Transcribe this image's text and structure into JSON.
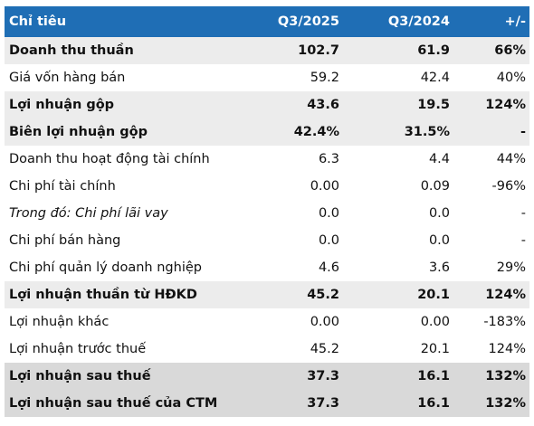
{
  "colors": {
    "header_bg": "#1f6eb5",
    "header_text": "#ffffff",
    "highlight_bg": "#ececec",
    "highlight_strong_bg": "#d9d9d9",
    "row_bg": "#ffffff"
  },
  "columns": [
    "Chỉ tiêu",
    "Q3/2025",
    "Q3/2024",
    "+/-"
  ],
  "rows": [
    {
      "label": "Doanh thu thuần",
      "q3_2025": "102.7",
      "q3_2024": "61.9",
      "change": "66%",
      "style": "highlight-bold"
    },
    {
      "label": "Giá vốn hàng bán",
      "q3_2025": "59.2",
      "q3_2024": "42.4",
      "change": "40%",
      "style": "normal"
    },
    {
      "label": "Lợi nhuận gộp",
      "q3_2025": "43.6",
      "q3_2024": "19.5",
      "change": "124%",
      "style": "highlight-bold"
    },
    {
      "label": "Biên lợi nhuận gộp",
      "q3_2025": "42.4%",
      "q3_2024": "31.5%",
      "change": "-",
      "style": "highlight-bold"
    },
    {
      "label": "Doanh thu hoạt động tài chính",
      "q3_2025": "6.3",
      "q3_2024": "4.4",
      "change": "44%",
      "style": "normal"
    },
    {
      "label": "Chi phí tài chính",
      "q3_2025": "0.00",
      "q3_2024": "0.09",
      "change": "-96%",
      "style": "normal"
    },
    {
      "label": "Trong đó: Chi phí lãi vay",
      "q3_2025": "0.0",
      "q3_2024": "0.0",
      "change": "-",
      "style": "italic"
    },
    {
      "label": "Chi phí bán hàng",
      "q3_2025": "0.0",
      "q3_2024": "0.0",
      "change": "-",
      "style": "normal"
    },
    {
      "label": "Chi phí quản lý doanh nghiệp",
      "q3_2025": "4.6",
      "q3_2024": "3.6",
      "change": "29%",
      "style": "normal"
    },
    {
      "label": "Lợi nhuận thuần từ HĐKD",
      "q3_2025": "45.2",
      "q3_2024": "20.1",
      "change": "124%",
      "style": "highlight-bold"
    },
    {
      "label": "Lợi nhuận khác",
      "q3_2025": "0.00",
      "q3_2024": "0.00",
      "change": "-183%",
      "style": "normal"
    },
    {
      "label": "Lợi nhuận trước thuế",
      "q3_2025": "45.2",
      "q3_2024": "20.1",
      "change": "124%",
      "style": "normal"
    },
    {
      "label": "Lợi nhuận sau thuế",
      "q3_2025": "37.3",
      "q3_2024": "16.1",
      "change": "132%",
      "style": "strong-bold"
    },
    {
      "label": "Lợi nhuận sau thuế của CTM",
      "q3_2025": "37.3",
      "q3_2024": "16.1",
      "change": "132%",
      "style": "strong-bold"
    }
  ]
}
